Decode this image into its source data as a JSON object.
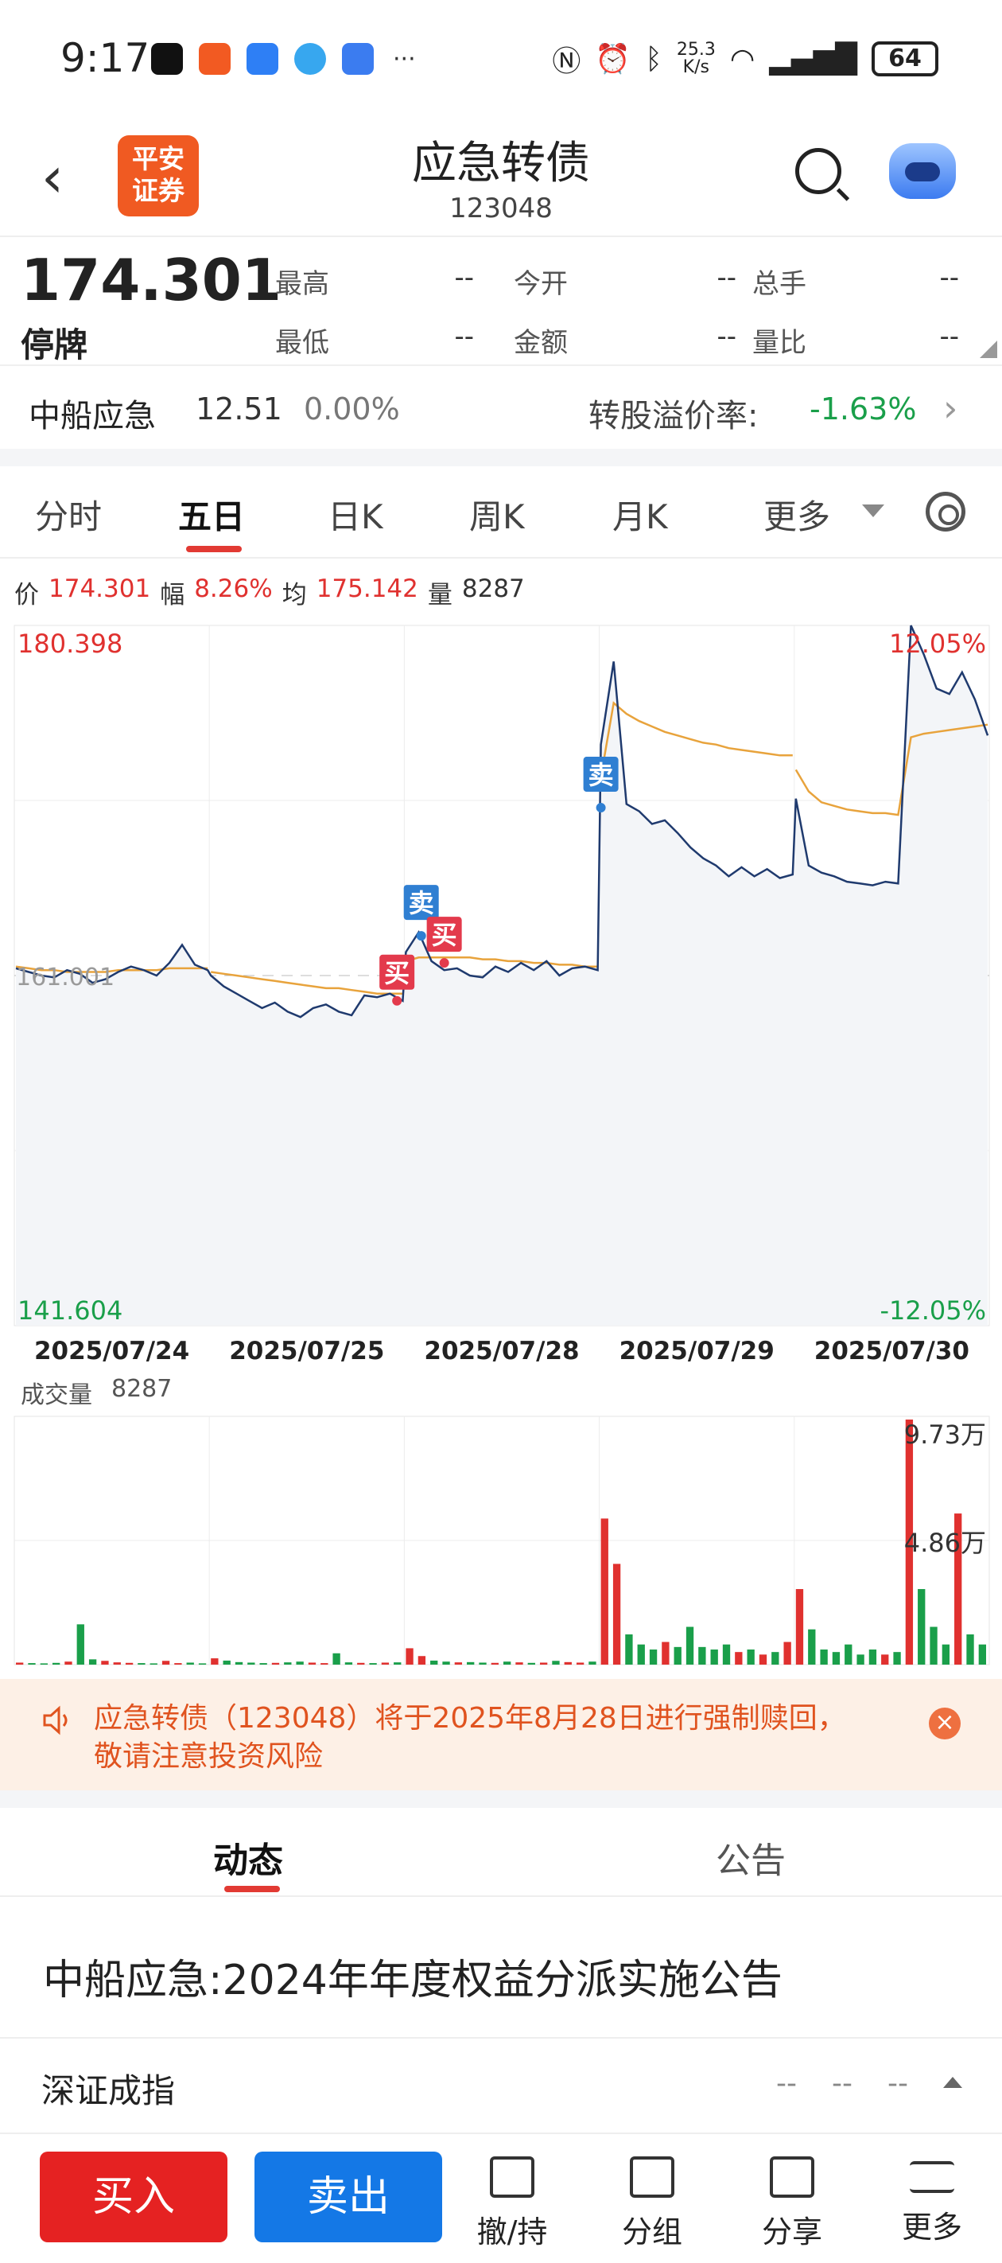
{
  "status_bar": {
    "time": "9:17",
    "speed_value": "25.3",
    "speed_unit": "K/s",
    "battery": "64",
    "more": "···"
  },
  "header": {
    "back_icon": "chevron-left-icon",
    "logo_text": "平安证券",
    "title": "应急转债",
    "code": "123048"
  },
  "quote": {
    "price": "174.301",
    "status": "停牌",
    "fields": [
      [
        {
          "label": "最高",
          "value": "--"
        },
        {
          "label": "今开",
          "value": "--"
        },
        {
          "label": "总手",
          "value": "--"
        }
      ],
      [
        {
          "label": "最低",
          "value": "--"
        },
        {
          "label": "金额",
          "value": "--"
        },
        {
          "label": "量比",
          "value": "--"
        }
      ]
    ]
  },
  "underlying": {
    "name": "中船应急",
    "price": "12.51",
    "change_pct": "0.00%",
    "premium_label": "转股溢价率:",
    "premium_value": "-1.63%"
  },
  "tabs": [
    {
      "label": "分时",
      "active": false
    },
    {
      "label": "五日",
      "active": true
    },
    {
      "label": "日K",
      "active": false
    },
    {
      "label": "周K",
      "active": false
    },
    {
      "label": "月K",
      "active": false
    },
    {
      "label": "更多",
      "active": false
    }
  ],
  "info_line": {
    "price_label": "价",
    "price_value": "174.301",
    "range_label": "幅",
    "range_value": "8.26%",
    "avg_label": "均",
    "avg_value": "175.142",
    "vol_label": "量",
    "vol_value": "8287"
  },
  "chart_data": {
    "type": "line",
    "title": "五日",
    "y_top_label": "180.398",
    "y_bottom_label": "141.604",
    "y_mid_label": "161.001",
    "pct_top": "12.05%",
    "pct_bottom": "-12.05%",
    "ylim": [
      141.604,
      180.398
    ],
    "days": [
      "2025/07/24",
      "2025/07/25",
      "2025/07/28",
      "2025/07/29",
      "2025/07/30"
    ],
    "price_series": [
      [
        161.4,
        161.2,
        161.0,
        160.9,
        161.3,
        161.1,
        160.6,
        160.8,
        161.2,
        161.5,
        161.3,
        161.0,
        161.7,
        162.7,
        161.6,
        161.3
      ],
      [
        161.0,
        160.4,
        160.0,
        159.6,
        159.2,
        159.5,
        159.0,
        158.7,
        159.2,
        159.4,
        159.0,
        158.8,
        159.9,
        159.8,
        160.0,
        159.6
      ],
      [
        162.3,
        163.4,
        161.8,
        161.3,
        161.4,
        161.0,
        160.9,
        161.5,
        161.2,
        161.7,
        161.3,
        161.8,
        161.0,
        161.4,
        161.5,
        161.3
      ],
      [
        173.8,
        178.4,
        170.5,
        170.1,
        169.4,
        169.6,
        168.9,
        168.1,
        167.5,
        167.1,
        166.5,
        167.0,
        166.5,
        166.9,
        166.4,
        166.6
      ],
      [
        170.8,
        167.1,
        166.7,
        166.5,
        166.2,
        166.1,
        166.0,
        166.2,
        166.1,
        180.4,
        178.8,
        176.9,
        176.6,
        177.8,
        176.3,
        174.3
      ]
    ],
    "avg_series": [
      [
        161.5,
        161.4,
        161.3,
        161.3,
        161.2,
        161.2,
        161.2,
        161.2,
        161.3,
        161.3,
        161.3,
        161.3,
        161.4,
        161.4,
        161.4,
        161.4
      ],
      [
        161.2,
        161.1,
        161.0,
        160.9,
        160.8,
        160.7,
        160.6,
        160.5,
        160.4,
        160.3,
        160.3,
        160.2,
        160.1,
        160.0,
        160.0,
        160.0
      ],
      [
        161.8,
        162.0,
        162.0,
        162.0,
        162.0,
        162.0,
        161.9,
        161.9,
        161.8,
        161.8,
        161.7,
        161.7,
        161.6,
        161.6,
        161.5,
        161.5
      ],
      [
        172.0,
        176.1,
        175.5,
        175.1,
        174.8,
        174.5,
        174.3,
        174.1,
        173.9,
        173.8,
        173.6,
        173.5,
        173.4,
        173.3,
        173.2,
        173.2
      ],
      [
        172.4,
        171.2,
        170.6,
        170.4,
        170.2,
        170.1,
        170.0,
        170.0,
        169.9,
        174.2,
        174.4,
        174.5,
        174.6,
        174.7,
        174.8,
        174.9
      ]
    ],
    "markers": [
      {
        "label": "买",
        "kind": "buy",
        "day": 1,
        "pos": 0.97,
        "value": 159.6
      },
      {
        "label": "卖",
        "kind": "sell",
        "day": 2,
        "pos": 0.08,
        "value": 163.2
      },
      {
        "label": "买",
        "kind": "buy",
        "day": 2,
        "pos": 0.2,
        "value": 161.7
      },
      {
        "label": "卖",
        "kind": "sell",
        "day": 3,
        "pos": 0.0,
        "value": 170.3
      }
    ],
    "volume_label": "成交量",
    "volume_value": "8287",
    "volume_max_label": "9.73万",
    "volume_mid_label": "4.86万",
    "volume_max": 97300,
    "volume_series": [
      [
        800,
        600,
        500,
        700,
        1200,
        16000,
        2100,
        1500,
        900,
        700,
        600,
        500,
        1500,
        600,
        800,
        500
      ],
      [
        2500,
        1600,
        1000,
        800,
        600,
        700,
        900,
        1200,
        800,
        600,
        4500,
        900,
        700,
        600,
        800,
        900
      ],
      [
        6500,
        3400,
        1600,
        1200,
        900,
        1000,
        800,
        700,
        1200,
        900,
        700,
        800,
        1500,
        1000,
        800,
        1200
      ],
      [
        58000,
        40000,
        12000,
        8000,
        6000,
        9000,
        7000,
        15000,
        7000,
        6000,
        8000,
        5000,
        6000,
        4000,
        5000,
        9000
      ],
      [
        30000,
        14000,
        6000,
        5000,
        8000,
        4000,
        6000,
        4000,
        5000,
        97300,
        30000,
        15000,
        8000,
        60000,
        12000,
        8000
      ]
    ]
  },
  "notice": {
    "text_line1": "应急转债（123048）将于2025年8月28日进行强制赎回，",
    "text_line2": "敬请注意投资风险",
    "close": "×"
  },
  "news_tabs": [
    {
      "label": "动态",
      "active": true
    },
    {
      "label": "公告",
      "active": false
    }
  ],
  "news_item": "中船应急:2024年年度权益分派实施公告",
  "index": {
    "name": "深证成指",
    "values": [
      "--",
      "--",
      "--"
    ]
  },
  "bottom_bar": {
    "buy": "买入",
    "sell": "卖出",
    "items": [
      {
        "label": "撤/持",
        "icon": "cancel-hold-icon"
      },
      {
        "label": "分组",
        "icon": "folder-icon"
      },
      {
        "label": "分享",
        "icon": "share-icon"
      },
      {
        "label": "更多",
        "icon": "menu-icon"
      }
    ]
  },
  "colors": {
    "up": "#e0312f",
    "down": "#1a9f4a",
    "price_line": "#1f3a6e",
    "avg_line": "#e8a33c",
    "buy_button": "#e52222",
    "sell_button": "#1478e6"
  }
}
